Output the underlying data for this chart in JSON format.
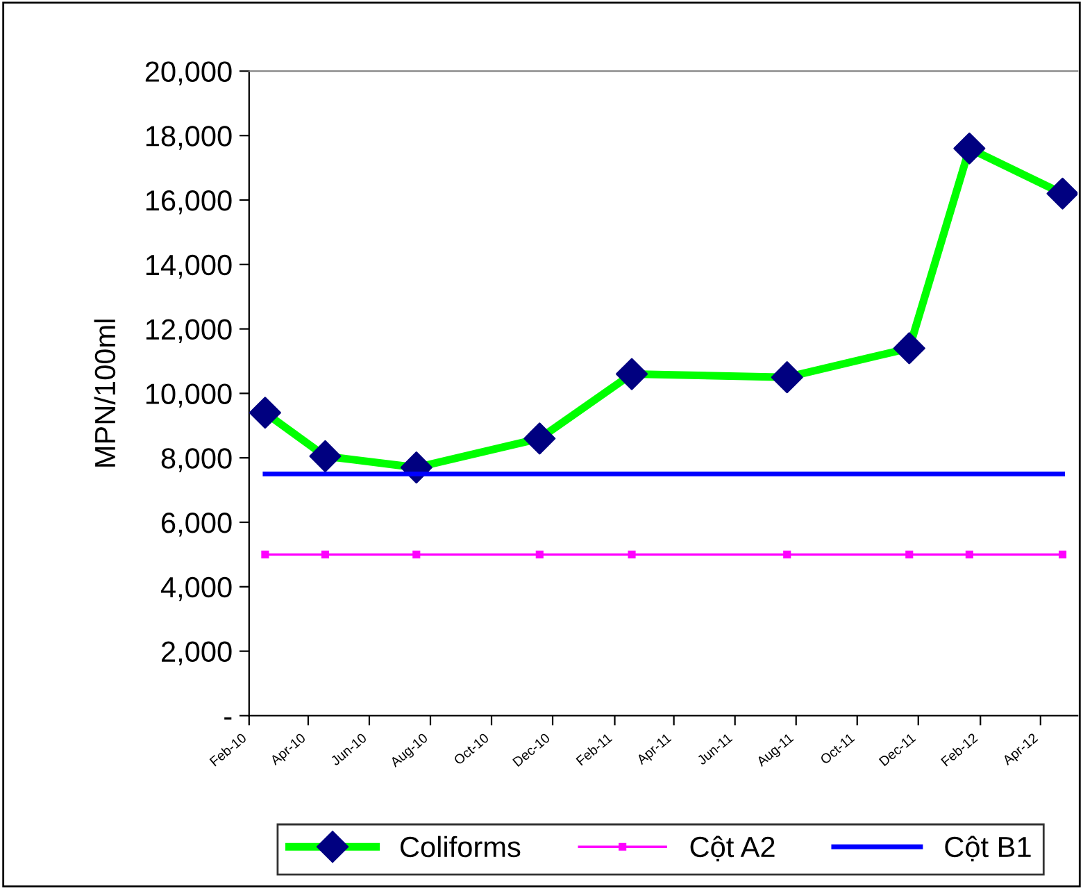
{
  "chart_data": {
    "type": "line",
    "ylabel": "MPN/100ml",
    "x": [
      "2010-02-17",
      "2010-04-18",
      "2010-07-18",
      "2010-11-18",
      "2011-02-18",
      "2011-07-23",
      "2011-11-22",
      "2012-01-21",
      "2012-04-23"
    ],
    "series": [
      {
        "name": "Coliforms",
        "color": "#00ff00",
        "colors": [
          "#000080",
          "#000080",
          "#000080",
          "#000080",
          "#000080",
          "#000080",
          "#000080",
          "#000080",
          "#000080"
        ],
        "marker": "diamond",
        "values": [
          9400,
          8050,
          7700,
          8600,
          10600,
          10500,
          11400,
          17600,
          16200
        ]
      },
      {
        "name": "Cột A2",
        "color": "#ff00ff",
        "marker": "square",
        "values": [
          5000,
          5000,
          5000,
          5000,
          5000,
          5000,
          5000,
          5000,
          5000
        ]
      },
      {
        "name": "Cột B1",
        "color": "#0000ff",
        "marker": "none",
        "values": [
          7500,
          7500,
          7500,
          7500,
          7500,
          7500,
          7500,
          7500,
          7500
        ]
      }
    ],
    "xlim": [
      "2010-02-01",
      "2012-05-08"
    ],
    "xticks": [
      {
        "value": "2010-02-01",
        "label": "Feb-10"
      },
      {
        "value": "2010-04-01",
        "label": "Apr-10"
      },
      {
        "value": "2010-06-01",
        "label": "Jun-10"
      },
      {
        "value": "2010-08-01",
        "label": "Aug-10"
      },
      {
        "value": "2010-10-01",
        "label": "Oct-10"
      },
      {
        "value": "2010-12-01",
        "label": "Dec-10"
      },
      {
        "value": "2011-02-01",
        "label": "Feb-11"
      },
      {
        "value": "2011-04-01",
        "label": "Apr-11"
      },
      {
        "value": "2011-06-01",
        "label": "Jun-11"
      },
      {
        "value": "2011-08-01",
        "label": "Aug-11"
      },
      {
        "value": "2011-10-01",
        "label": "Oct-11"
      },
      {
        "value": "2011-12-01",
        "label": "Dec-11"
      },
      {
        "value": "2012-02-01",
        "label": "Feb-12"
      },
      {
        "value": "2012-04-01",
        "label": "Apr-12"
      }
    ],
    "ylim": [
      0,
      20000
    ],
    "yticks": [
      {
        "value": 0,
        "label": "-"
      },
      {
        "value": 2000,
        "label": "2,000"
      },
      {
        "value": 4000,
        "label": "4,000"
      },
      {
        "value": 6000,
        "label": "6,000"
      },
      {
        "value": 8000,
        "label": "8,000"
      },
      {
        "value": 10000,
        "label": "10,000"
      },
      {
        "value": 12000,
        "label": "12,000"
      },
      {
        "value": 14000,
        "label": "14,000"
      },
      {
        "value": 16000,
        "label": "16,000"
      },
      {
        "value": 18000,
        "label": "18,000"
      },
      {
        "value": 20000,
        "label": "20,000"
      }
    ],
    "grid": false,
    "legend": "bottom",
    "line_style": "solid"
  }
}
